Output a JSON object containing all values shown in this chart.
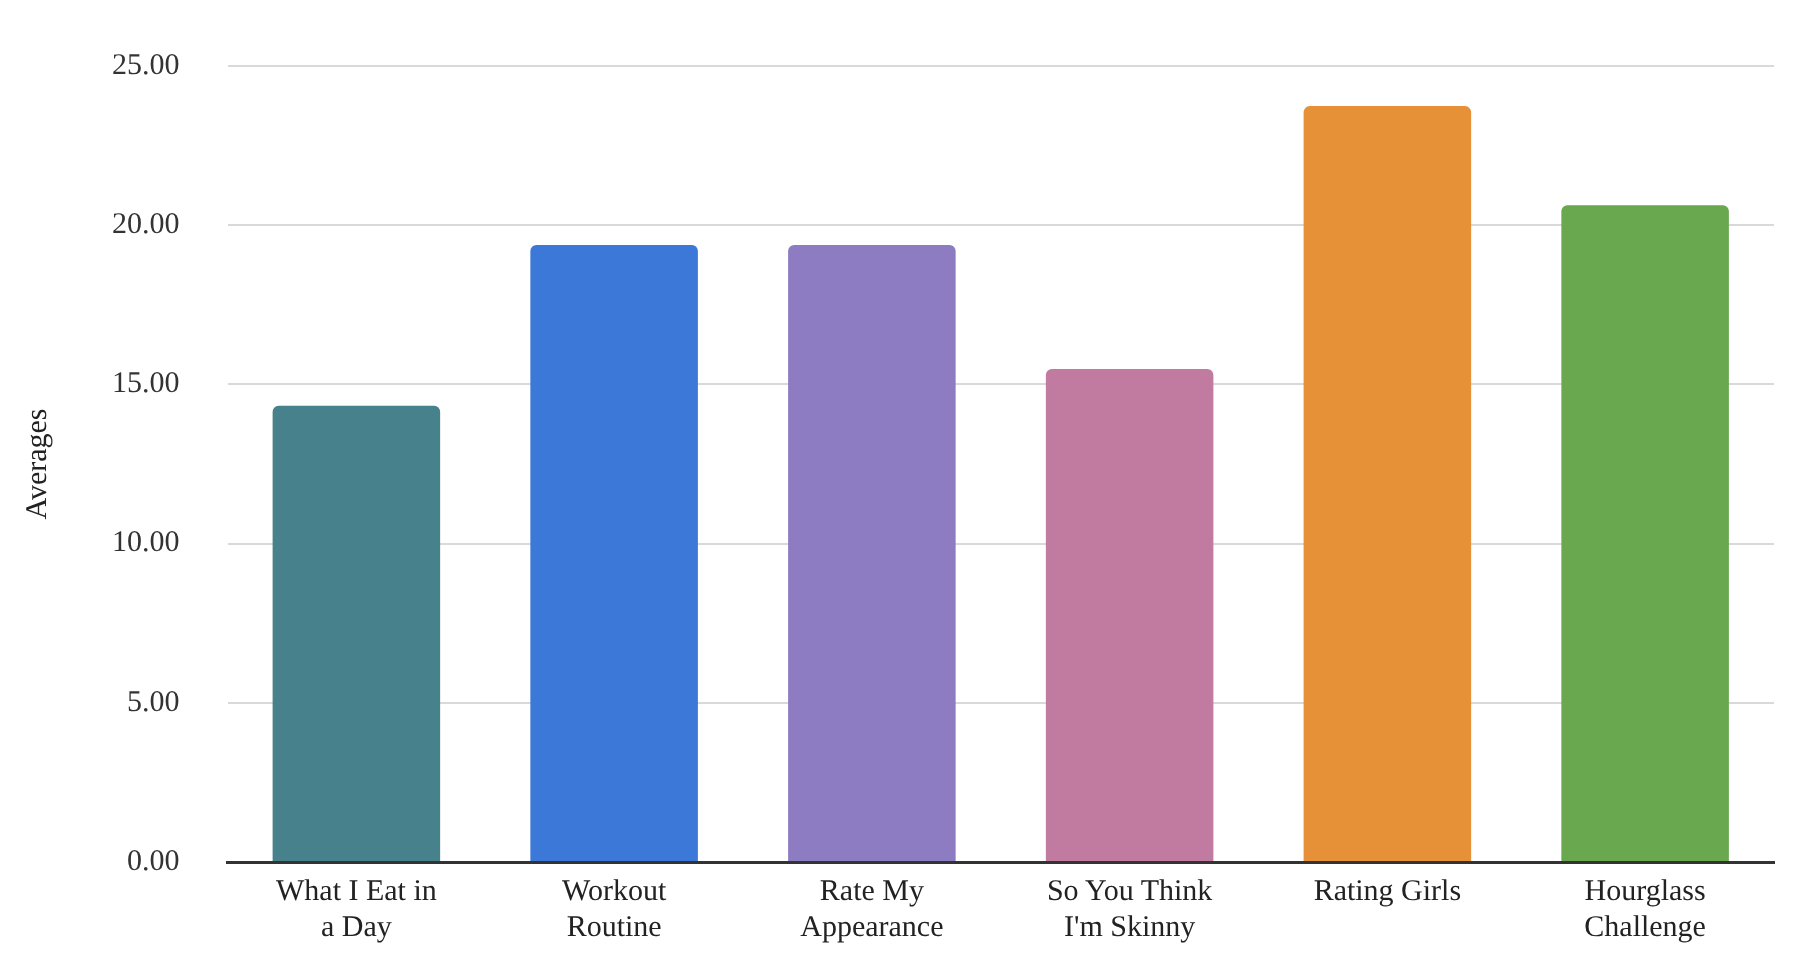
{
  "chart_data": {
    "type": "bar",
    "ylabel": "Averages",
    "categories": [
      "What I Eat in a Day",
      "Workout Routine",
      "Rate My Appearance",
      "So You Think I'm Skinny",
      "Rating Girls",
      "Hourglass Challenge"
    ],
    "values": [
      14.33,
      19.38,
      19.38,
      15.48,
      23.74,
      20.63
    ],
    "colors": [
      "#47818c",
      "#3c78d8",
      "#8e7cc3",
      "#c27ba0",
      "#e69138",
      "#6aa84f"
    ],
    "ylim": [
      0,
      25
    ],
    "yticks": [
      {
        "value": 0,
        "label": "0.00"
      },
      {
        "value": 5,
        "label": "5.00"
      },
      {
        "value": 10,
        "label": "10.00"
      },
      {
        "value": 15,
        "label": "15.00"
      },
      {
        "value": 20,
        "label": "20.00"
      },
      {
        "value": 25,
        "label": "25.00"
      }
    ],
    "grid": "y"
  }
}
